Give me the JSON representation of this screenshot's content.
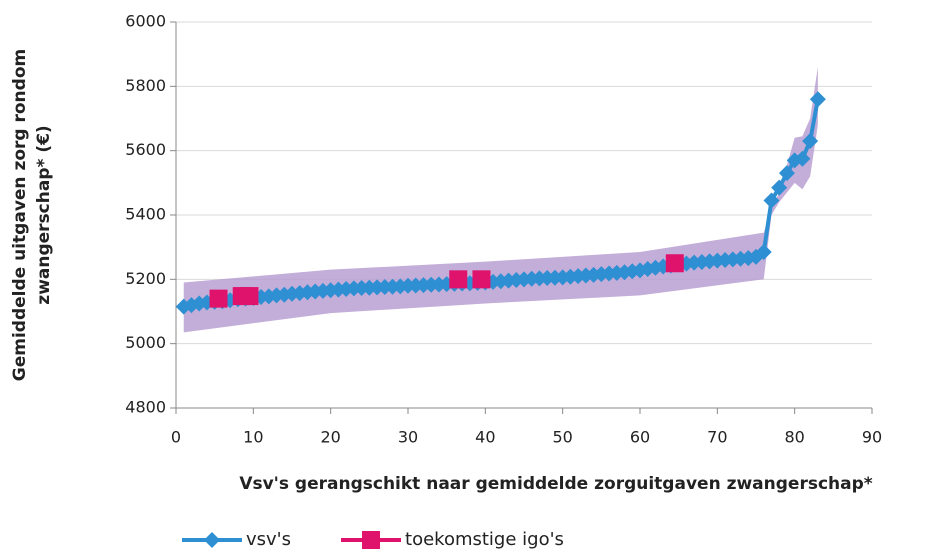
{
  "chart_data": {
    "type": "line",
    "xlabel": "Vsv's gerangschikt naar gemiddelde zorguitgaven zwangerschap*",
    "ylabel": [
      "Gemiddelde uitgaven zorg rondom",
      "zwangerschap* (€)"
    ],
    "xlim": [
      0,
      90
    ],
    "xticks": [
      0,
      10,
      20,
      30,
      40,
      50,
      60,
      70,
      80,
      90
    ],
    "ylim": [
      4800,
      6000
    ],
    "yticks": [
      4800,
      5000,
      5200,
      5400,
      5600,
      5800,
      6000
    ],
    "grid": true,
    "legend": "bottom",
    "band": {
      "color": "#b99fd2",
      "x": [
        1,
        20,
        40,
        60,
        76,
        77,
        78,
        80,
        81,
        82,
        83
      ],
      "upper": [
        5190,
        5230,
        5255,
        5285,
        5345,
        5420,
        5470,
        5640,
        5645,
        5700,
        5860
      ],
      "lower": [
        5035,
        5095,
        5125,
        5150,
        5200,
        5400,
        5440,
        5500,
        5480,
        5520,
        5680
      ]
    },
    "series": [
      {
        "name": "vsv's",
        "color": "#2e8fd3",
        "marker": "diamond",
        "x": [
          1,
          2,
          3,
          4,
          5,
          6,
          7,
          8,
          9,
          10,
          11,
          12,
          13,
          14,
          15,
          16,
          17,
          18,
          19,
          20,
          21,
          22,
          23,
          24,
          25,
          26,
          27,
          28,
          29,
          30,
          31,
          32,
          33,
          34,
          35,
          36,
          37,
          38,
          39,
          40,
          41,
          42,
          43,
          44,
          45,
          46,
          47,
          48,
          49,
          50,
          51,
          52,
          53,
          54,
          55,
          56,
          57,
          58,
          59,
          60,
          61,
          62,
          63,
          64,
          65,
          66,
          67,
          68,
          69,
          70,
          71,
          72,
          73,
          74,
          75,
          76,
          77,
          78,
          79,
          80,
          81,
          82,
          83
        ],
        "values": [
          5115,
          5120,
          5125,
          5128,
          5130,
          5132,
          5135,
          5138,
          5140,
          5142,
          5145,
          5147,
          5150,
          5152,
          5155,
          5157,
          5160,
          5162,
          5164,
          5166,
          5168,
          5170,
          5172,
          5173,
          5174,
          5175,
          5176,
          5177,
          5178,
          5180,
          5181,
          5182,
          5183,
          5184,
          5185,
          5186,
          5187,
          5188,
          5189,
          5190,
          5192,
          5194,
          5196,
          5198,
          5200,
          5202,
          5203,
          5204,
          5205,
          5206,
          5208,
          5210,
          5212,
          5214,
          5216,
          5218,
          5220,
          5222,
          5225,
          5228,
          5232,
          5236,
          5240,
          5243,
          5246,
          5249,
          5252,
          5254,
          5256,
          5258,
          5260,
          5262,
          5264,
          5266,
          5270,
          5285,
          5445,
          5485,
          5530,
          5570,
          5575,
          5630,
          5760
        ]
      },
      {
        "name": "toekomstige igo's",
        "color": "#e0136c",
        "marker": "square",
        "x": [
          5.5,
          8.5,
          9.5,
          36.5,
          39.5,
          64.5
        ],
        "values": [
          5140,
          5148,
          5148,
          5200,
          5200,
          5250
        ]
      }
    ]
  }
}
